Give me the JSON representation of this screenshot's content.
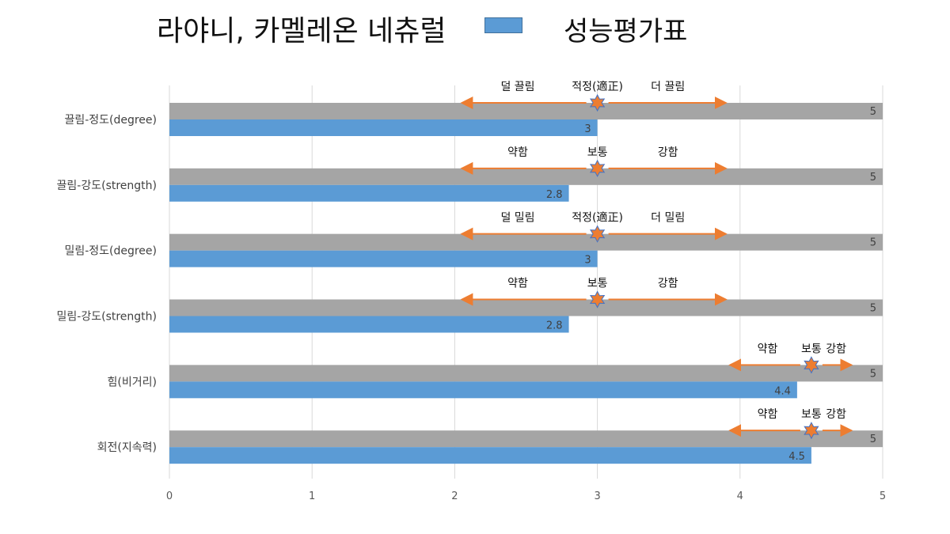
{
  "chart_data": {
    "type": "bar",
    "orientation": "horizontal",
    "title": "라야니, 카멜레온 네츄럴",
    "legend": {
      "label": "성능평가표",
      "color": "#5b9bd5",
      "placement": "top"
    },
    "xlim": [
      0,
      5
    ],
    "x_ticks": [
      "0",
      "1",
      "2",
      "3",
      "4",
      "5"
    ],
    "grid": true,
    "categories": [
      "끌림-정도(degree)",
      "끌림-강도(strength)",
      "밀림-정도(degree)",
      "밀림-강도(strength)",
      "힘(비거리)",
      "회전(지속력)"
    ],
    "series": [
      {
        "color": "#a5a5a5",
        "values": [
          5,
          5,
          5,
          5,
          5,
          5
        ],
        "labels": [
          "5",
          "5",
          "5",
          "5",
          "5",
          "5"
        ]
      },
      {
        "name": "성능평가표",
        "color": "#5b9bd5",
        "values": [
          3,
          2.8,
          3,
          2.8,
          4.4,
          4.5
        ],
        "labels": [
          "3",
          "2.8",
          "3",
          "2.8",
          "4.4",
          "4.5"
        ]
      }
    ],
    "annotations": [
      {
        "range": [
          2.05,
          3.9
        ],
        "marker": 3.0,
        "labels": [
          "덜 끌림",
          "적정(適正)",
          "더 끌림"
        ]
      },
      {
        "range": [
          2.05,
          3.9
        ],
        "marker": 3.0,
        "labels": [
          "약함",
          "보통",
          "강함"
        ]
      },
      {
        "range": [
          2.05,
          3.9
        ],
        "marker": 3.0,
        "labels": [
          "덜 밀림",
          "적정(適正)",
          "더 밀림"
        ]
      },
      {
        "range": [
          2.05,
          3.9
        ],
        "marker": 3.0,
        "labels": [
          "약함",
          "보통",
          "강함"
        ]
      },
      {
        "range": [
          3.93,
          4.78
        ],
        "marker": 4.5,
        "labels": [
          "약함",
          "보통",
          "강함"
        ]
      },
      {
        "range": [
          3.93,
          4.78
        ],
        "marker": 4.5,
        "labels": [
          "약함",
          "보통",
          "강함"
        ]
      }
    ],
    "annotation_color": "#ed7d31"
  }
}
